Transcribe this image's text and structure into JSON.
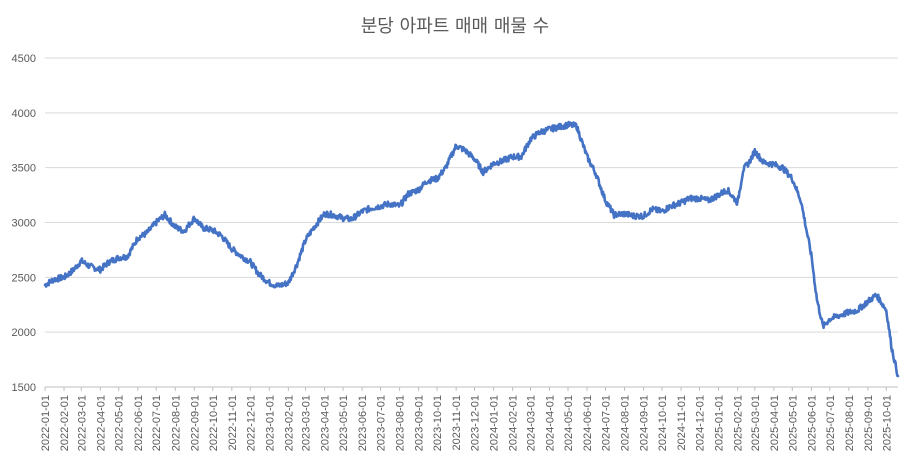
{
  "chart_data": {
    "type": "line",
    "title": "분당 아파트 매매 매물 수",
    "xlabel": "",
    "ylabel": "",
    "ylim": [
      1500,
      4500
    ],
    "yticks": [
      1500,
      2000,
      2500,
      3000,
      3500,
      4000,
      4500
    ],
    "grid": true,
    "legend": "none",
    "series_color": "#4472c4",
    "x_start": "2022-01-01",
    "x_end": "2025-10-20",
    "xticks": [
      "2022-01-01",
      "2022-02-01",
      "2022-03-01",
      "2022-04-01",
      "2022-05-01",
      "2022-06-01",
      "2022-07-01",
      "2022-08-01",
      "2022-09-01",
      "2022-10-01",
      "2022-11-01",
      "2022-12-01",
      "2023-01-01",
      "2023-02-01",
      "2023-03-01",
      "2023-04-01",
      "2023-05-01",
      "2023-06-01",
      "2023-07-01",
      "2023-08-01",
      "2023-09-01",
      "2023-10-01",
      "2023-11-01",
      "2023-12-01",
      "2024-01-01",
      "2024-02-01",
      "2024-03-01",
      "2024-04-01",
      "2024-05-01",
      "2024-06-01",
      "2024-07-01",
      "2024-08-01",
      "2024-09-01",
      "2024-10-01",
      "2024-11-01",
      "2024-12-01",
      "2025-01-01",
      "2025-02-01",
      "2025-03-01",
      "2025-04-01",
      "2025-05-01",
      "2025-06-01",
      "2025-07-01",
      "2025-08-01",
      "2025-09-01",
      "2025-10-01"
    ],
    "series": [
      {
        "x": [
          "2022-01-01",
          "2022-01-15",
          "2022-02-01",
          "2022-02-15",
          "2022-03-01",
          "2022-03-15",
          "2022-04-01",
          "2022-04-15",
          "2022-05-01",
          "2022-05-15",
          "2022-06-01",
          "2022-06-15",
          "2022-07-01",
          "2022-07-15",
          "2022-08-01",
          "2022-08-15",
          "2022-09-01",
          "2022-09-15",
          "2022-10-01",
          "2022-10-15",
          "2022-11-01",
          "2022-11-15",
          "2022-12-01",
          "2022-12-15",
          "2023-01-01",
          "2023-01-15",
          "2023-02-01",
          "2023-02-15",
          "2023-03-01",
          "2023-03-15",
          "2023-04-01",
          "2023-04-15",
          "2023-05-01",
          "2023-05-15",
          "2023-06-01",
          "2023-06-15",
          "2023-07-01",
          "2023-07-15",
          "2023-08-01",
          "2023-08-15",
          "2023-09-01",
          "2023-09-15",
          "2023-10-01",
          "2023-10-15",
          "2023-11-01",
          "2023-11-15",
          "2023-12-01",
          "2023-12-15",
          "2024-01-01",
          "2024-01-15",
          "2024-02-01",
          "2024-02-15",
          "2024-03-01",
          "2024-03-15",
          "2024-04-01",
          "2024-04-15",
          "2024-05-01",
          "2024-05-15",
          "2024-06-01",
          "2024-06-15",
          "2024-07-01",
          "2024-07-15",
          "2024-08-01",
          "2024-08-15",
          "2024-09-01",
          "2024-09-15",
          "2024-10-01",
          "2024-10-15",
          "2024-11-01",
          "2024-11-15",
          "2024-12-01",
          "2024-12-15",
          "2025-01-01",
          "2025-01-15",
          "2025-02-01",
          "2025-02-10",
          "2025-02-20",
          "2025-03-01",
          "2025-03-15",
          "2025-04-01",
          "2025-04-15",
          "2025-05-01",
          "2025-05-15",
          "2025-06-01",
          "2025-06-10",
          "2025-06-20",
          "2025-07-01",
          "2025-07-15",
          "2025-08-01",
          "2025-08-15",
          "2025-09-01",
          "2025-09-15",
          "2025-10-01",
          "2025-10-10",
          "2025-10-20"
        ],
        "y": [
          2430,
          2480,
          2500,
          2560,
          2650,
          2600,
          2570,
          2640,
          2680,
          2690,
          2860,
          2900,
          3000,
          3070,
          2960,
          2920,
          3040,
          2950,
          2930,
          2880,
          2760,
          2700,
          2640,
          2530,
          2450,
          2420,
          2450,
          2620,
          2840,
          2960,
          3080,
          3070,
          3040,
          3030,
          3100,
          3130,
          3150,
          3170,
          3150,
          3260,
          3300,
          3380,
          3400,
          3500,
          3700,
          3660,
          3580,
          3460,
          3540,
          3560,
          3600,
          3600,
          3760,
          3820,
          3850,
          3870,
          3890,
          3880,
          3600,
          3450,
          3200,
          3070,
          3080,
          3060,
          3060,
          3120,
          3100,
          3150,
          3180,
          3220,
          3220,
          3200,
          3250,
          3300,
          3180,
          3480,
          3550,
          3650,
          3550,
          3530,
          3500,
          3400,
          3200,
          2700,
          2300,
          2050,
          2120,
          2150,
          2180,
          2200,
          2280,
          2340,
          2200,
          1850,
          1600
        ]
      }
    ]
  }
}
